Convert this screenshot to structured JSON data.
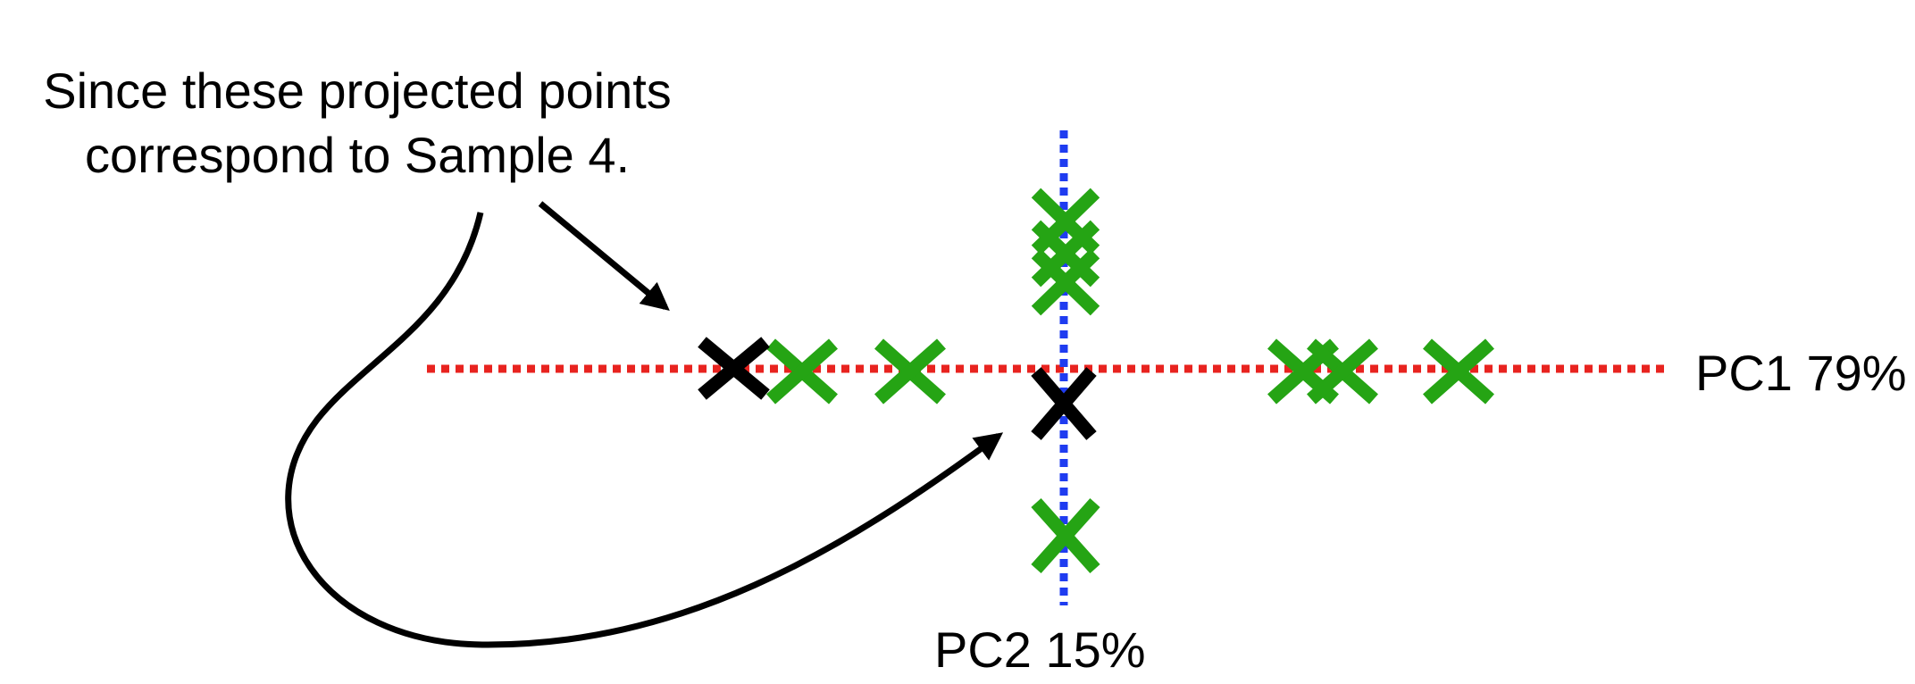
{
  "annotation": {
    "line1": "Since these projected points",
    "line2": "correspond to Sample 4."
  },
  "axes": {
    "pc1_label": "PC1 79%",
    "pc2_label": "PC2 15%"
  },
  "colors": {
    "pc1_axis": "#e8231f",
    "pc2_axis": "#1f3cf0",
    "projected_point": "#25a414",
    "highlighted_point": "#000000",
    "arrow": "#000000"
  },
  "icons": {
    "point_marker": "x-mark-icon",
    "arrowhead": "arrowhead-icon"
  }
}
